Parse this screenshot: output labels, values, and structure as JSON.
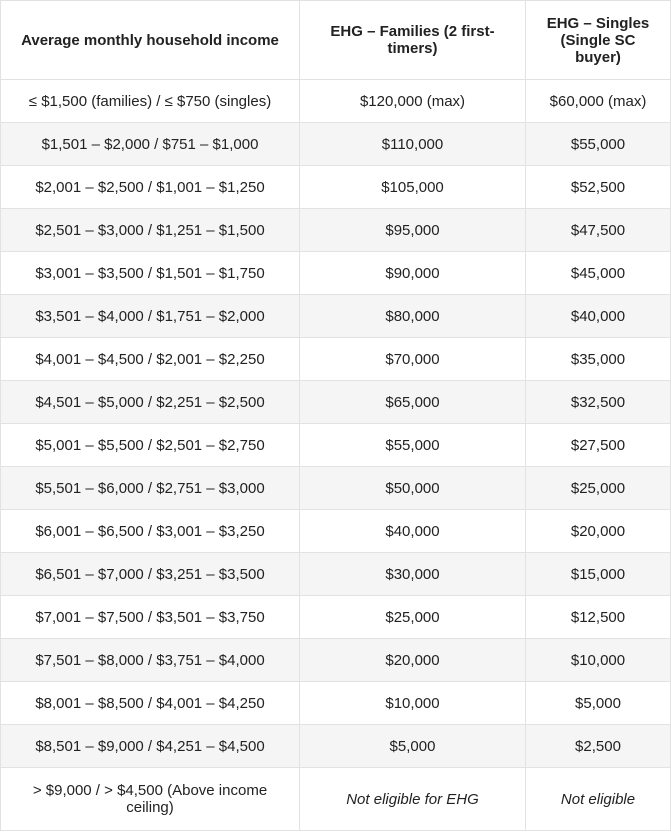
{
  "table": {
    "headers": [
      "Average monthly household income",
      "EHG – Families (2 first-timers)",
      "EHG – Singles (Single SC buyer)"
    ],
    "rows": [
      [
        "≤ $1,500 (families) / ≤ $750 (singles)",
        "$120,000 (max)",
        "$60,000 (max)"
      ],
      [
        "$1,501 – $2,000 / $751 – $1,000",
        "$110,000",
        "$55,000"
      ],
      [
        "$2,001 – $2,500 / $1,001 – $1,250",
        "$105,000",
        "$52,500"
      ],
      [
        "$2,501 – $3,000 / $1,251 – $1,500",
        "$95,000",
        "$47,500"
      ],
      [
        "$3,001 – $3,500 / $1,501 – $1,750",
        "$90,000",
        "$45,000"
      ],
      [
        "$3,501 – $4,000 / $1,751 – $2,000",
        "$80,000",
        "$40,000"
      ],
      [
        "$4,001 – $4,500 / $2,001 – $2,250",
        "$70,000",
        "$35,000"
      ],
      [
        "$4,501 – $5,000 / $2,251 – $2,500",
        "$65,000",
        "$32,500"
      ],
      [
        "$5,001 – $5,500 / $2,501 – $2,750",
        "$55,000",
        "$27,500"
      ],
      [
        "$5,501 – $6,000 / $2,751 – $3,000",
        "$50,000",
        "$25,000"
      ],
      [
        "$6,001 – $6,500 / $3,001 – $3,250",
        "$40,000",
        "$20,000"
      ],
      [
        "$6,501 – $7,000 / $3,251 – $3,500",
        "$30,000",
        "$15,000"
      ],
      [
        "$7,001 – $7,500 / $3,501 – $3,750",
        "$25,000",
        "$12,500"
      ],
      [
        "$7,501 – $8,000 / $3,751 – $4,000",
        "$20,000",
        "$10,000"
      ],
      [
        "$8,001 – $8,500 / $4,001 – $4,250",
        "$10,000",
        "$5,000"
      ],
      [
        "$8,501 – $9,000 / $4,251 – $4,500",
        "$5,000",
        "$2,500"
      ],
      [
        "> $9,000 / > $4,500 (Above income ceiling)",
        "Not eligible for EHG",
        "Not eligible"
      ]
    ]
  }
}
